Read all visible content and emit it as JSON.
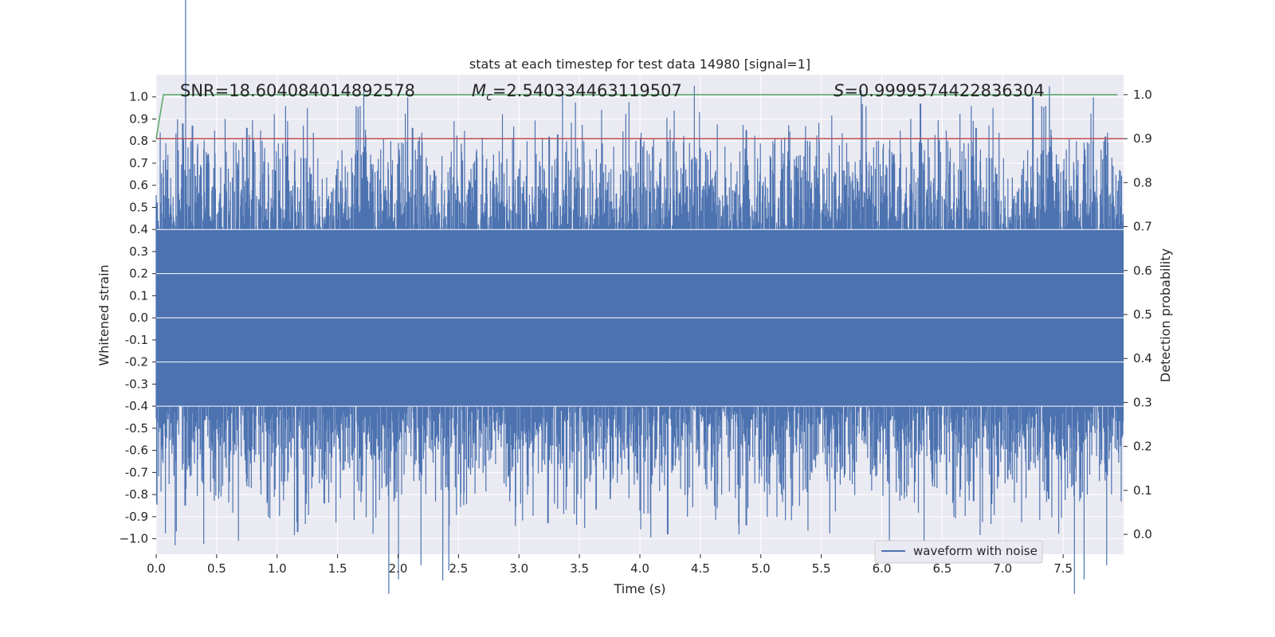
{
  "chart_data": {
    "type": "line",
    "title": "stats at each timestep for test data 14980 [signal=1]",
    "xlabel": "Time (s)",
    "ylabel": "Whitened strain",
    "y2label": "Detection probability",
    "xlim": [
      0.0,
      8.0
    ],
    "ylim": [
      -1.07,
      1.1
    ],
    "y2lim": [
      -0.045,
      1.045
    ],
    "x_ticks": [
      0.0,
      0.5,
      1.0,
      1.5,
      2.0,
      2.5,
      3.0,
      3.5,
      4.0,
      4.5,
      5.0,
      5.5,
      6.0,
      6.5,
      7.0,
      7.5
    ],
    "x_tick_labels": [
      "0.0",
      "0.5",
      "1.0",
      "1.5",
      "2.0",
      "2.5",
      "3.0",
      "3.5",
      "4.0",
      "4.5",
      "5.0",
      "5.5",
      "6.0",
      "6.5",
      "7.0",
      "7.5"
    ],
    "y_ticks": [
      1.0,
      0.9,
      0.8,
      0.7,
      0.6,
      0.5,
      0.4,
      0.3,
      0.2,
      0.1,
      0.0,
      -0.1,
      -0.2,
      -0.3,
      -0.4,
      -0.5,
      -0.6,
      -0.7,
      -0.8,
      -0.9,
      -1.0
    ],
    "y_tick_labels": [
      "1.0",
      "0.9",
      "0.8",
      "0.7",
      "0.6",
      "0.5",
      "0.4",
      "0.3",
      "0.2",
      "0.1",
      "0.0",
      "-0.1",
      "-0.2",
      "-0.3",
      "-0.4",
      "-0.5",
      "-0.6",
      "-0.7",
      "-0.8",
      "-0.9",
      "−1.0"
    ],
    "y2_ticks": [
      1.0,
      0.9,
      0.8,
      0.7,
      0.6,
      0.5,
      0.4,
      0.3,
      0.2,
      0.1,
      0.0
    ],
    "y2_tick_labels": [
      "1.0",
      "0.9",
      "0.8",
      "0.7",
      "0.6",
      "0.5",
      "0.4",
      "0.3",
      "0.2",
      "0.1",
      "0.0"
    ],
    "annotations": {
      "snr": "SNR=18.604084014892578",
      "mc_symbol": "M",
      "mc_sub": "c",
      "mc_value": "=2.540334463119507",
      "s_symbol": "S",
      "s_value": "=0.9999574422836304"
    },
    "series": [
      {
        "name": "waveform with noise",
        "axis": "left",
        "color": "#4c72b0",
        "duration_s": 8.0,
        "envelope_upper_typical": 0.55,
        "envelope_lower_typical": -0.55,
        "peaks": [
          {
            "x": 0.22,
            "y": 0.88
          },
          {
            "x": 0.3,
            "y": 0.87
          },
          {
            "x": 0.75,
            "y": 0.86
          },
          {
            "x": 2.12,
            "y": 0.86
          },
          {
            "x": 3.25,
            "y": 0.82
          },
          {
            "x": 3.32,
            "y": 0.83
          },
          {
            "x": 4.88,
            "y": 0.85
          },
          {
            "x": 6.32,
            "y": 0.97
          },
          {
            "x": 6.78,
            "y": 0.86
          },
          {
            "x": 7.25,
            "y": 1.0
          },
          {
            "x": 7.85,
            "y": 0.82
          }
        ],
        "troughs": [
          {
            "x": 0.24,
            "y": -0.85
          },
          {
            "x": 1.17,
            "y": -0.97
          },
          {
            "x": 1.39,
            "y": -0.84
          },
          {
            "x": 3.24,
            "y": -0.93
          },
          {
            "x": 4.23,
            "y": -0.98
          },
          {
            "x": 4.88,
            "y": -0.94
          },
          {
            "x": 6.76,
            "y": -0.83
          },
          {
            "x": 7.38,
            "y": -0.82
          }
        ]
      },
      {
        "name": "detection probability",
        "axis": "right",
        "color": "#55a868",
        "x": [
          0.0,
          0.06,
          7.95
        ],
        "y": [
          0.9,
          1.0,
          1.0
        ]
      },
      {
        "name": "threshold",
        "axis": "right",
        "color": "#c44e52",
        "x": [
          0.0,
          8.0
        ],
        "y": [
          0.9,
          0.9
        ]
      }
    ],
    "legend": {
      "position": "bottom-right",
      "entries": [
        {
          "label": "waveform with noise",
          "color": "#4c72b0"
        }
      ]
    },
    "grid": true
  },
  "colors": {
    "plot_background": "#eaeaf2",
    "grid": "#ffffff",
    "waveform": "#4c72b0",
    "probability": "#55a868",
    "threshold": "#c44e52"
  }
}
